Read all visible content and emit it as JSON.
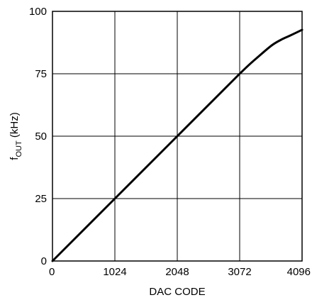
{
  "chart_data": {
    "type": "line",
    "title": "",
    "xlabel": "DAC CODE",
    "ylabel_parts": {
      "main": "f",
      "sub": "OUT",
      "unit": " (kHz)"
    },
    "xlim": [
      0,
      4096
    ],
    "ylim": [
      0,
      100
    ],
    "xticks": [
      0,
      1024,
      2048,
      3072,
      4096
    ],
    "yticks": [
      0,
      25,
      50,
      75,
      100
    ],
    "grid": true,
    "series": [
      {
        "x": [
          0,
          1024,
          2048,
          3072,
          3400,
          3600,
          3750,
          3900,
          4096
        ],
        "y": [
          0,
          25,
          50,
          75,
          82.3,
          86.4,
          88.6,
          90.3,
          92.6
        ]
      }
    ]
  }
}
